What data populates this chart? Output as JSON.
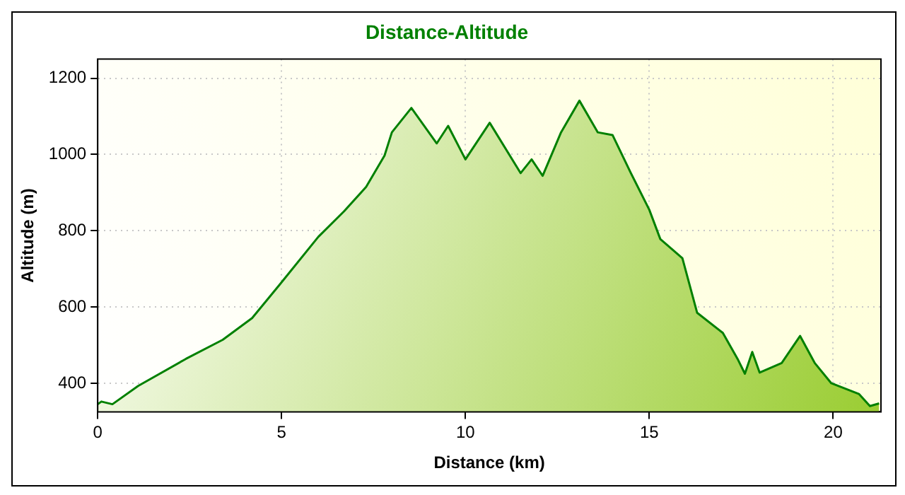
{
  "chart_data": {
    "type": "area",
    "title": "Distance-Altitude",
    "xlabel": "Distance (km)",
    "ylabel": "Altitude (m)",
    "series": [
      {
        "color": "#008000",
        "x": [
          0,
          0.1,
          0.4,
          1.1,
          2.4,
          3.4,
          4.2,
          4.96,
          6.0,
          6.7,
          7.3,
          7.8,
          8.0,
          8.53,
          9.22,
          9.53,
          10.0,
          10.66,
          11.5,
          11.8,
          12.1,
          12.6,
          13.1,
          13.6,
          14.0,
          14.5,
          15.0,
          15.3,
          15.9,
          16.3,
          17.0,
          17.4,
          17.6,
          17.8,
          18.0,
          18.6,
          19.1,
          19.5,
          19.95,
          20.7,
          21.0,
          21.25
        ],
        "values": [
          345,
          352,
          345,
          393,
          464,
          514,
          571,
          660,
          784,
          851,
          915,
          997,
          1058,
          1122,
          1029,
          1075,
          987,
          1083,
          951,
          987,
          944,
          1058,
          1141,
          1058,
          1051,
          951,
          855,
          778,
          728,
          585,
          532,
          464,
          425,
          482,
          428,
          453,
          524,
          453,
          400,
          372,
          340,
          347
        ]
      }
    ],
    "xlim": [
      0,
      21.3
    ],
    "xticks": [
      0,
      5,
      10,
      15,
      20
    ],
    "ylim": [
      325,
      1250
    ],
    "yticks": [
      400,
      600,
      800,
      1000,
      1200
    ],
    "grid": true,
    "legend": false
  }
}
